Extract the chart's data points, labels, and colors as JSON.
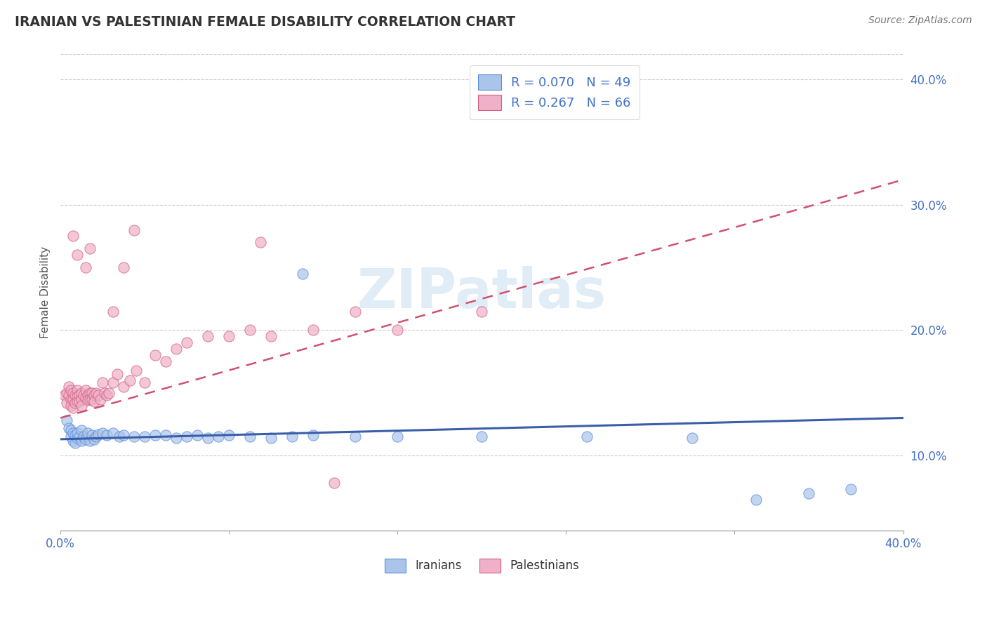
{
  "title": "IRANIAN VS PALESTINIAN FEMALE DISABILITY CORRELATION CHART",
  "source": "Source: ZipAtlas.com",
  "ylabel": "Female Disability",
  "xlim": [
    0.0,
    0.4
  ],
  "ylim": [
    0.04,
    0.42
  ],
  "yticks_right": [
    0.1,
    0.2,
    0.3,
    0.4
  ],
  "ytick_right_labels": [
    "10.0%",
    "20.0%",
    "30.0%",
    "40.0%"
  ],
  "iranian_color": "#aac4ea",
  "iranian_edge": "#5b8dd9",
  "palestinian_color": "#f0b0c8",
  "palestinian_edge": "#d06080",
  "trend_iranian_color": "#3a5fa8",
  "trend_palestinian_color": "#d05070",
  "watermark": "ZIPatlas",
  "background_color": "#ffffff",
  "iranians_x": [
    0.003,
    0.004,
    0.005,
    0.005,
    0.006,
    0.006,
    0.007,
    0.007,
    0.008,
    0.008,
    0.009,
    0.01,
    0.01,
    0.011,
    0.012,
    0.013,
    0.014,
    0.015,
    0.016,
    0.017,
    0.018,
    0.02,
    0.022,
    0.025,
    0.028,
    0.03,
    0.035,
    0.04,
    0.045,
    0.05,
    0.055,
    0.06,
    0.065,
    0.07,
    0.075,
    0.08,
    0.09,
    0.1,
    0.11,
    0.12,
    0.14,
    0.16,
    0.2,
    0.25,
    0.3,
    0.33,
    0.355,
    0.375,
    0.115
  ],
  "iranians_y": [
    0.128,
    0.122,
    0.12,
    0.115,
    0.118,
    0.112,
    0.116,
    0.11,
    0.114,
    0.118,
    0.115,
    0.12,
    0.112,
    0.115,
    0.113,
    0.118,
    0.112,
    0.116,
    0.113,
    0.115,
    0.117,
    0.118,
    0.116,
    0.118,
    0.115,
    0.116,
    0.115,
    0.115,
    0.116,
    0.116,
    0.114,
    0.115,
    0.116,
    0.114,
    0.115,
    0.116,
    0.115,
    0.114,
    0.115,
    0.116,
    0.115,
    0.115,
    0.115,
    0.115,
    0.114,
    0.065,
    0.07,
    0.073,
    0.245
  ],
  "palestinians_x": [
    0.002,
    0.003,
    0.003,
    0.004,
    0.004,
    0.005,
    0.005,
    0.005,
    0.006,
    0.006,
    0.006,
    0.007,
    0.007,
    0.008,
    0.008,
    0.008,
    0.009,
    0.009,
    0.01,
    0.01,
    0.01,
    0.011,
    0.012,
    0.012,
    0.013,
    0.013,
    0.014,
    0.014,
    0.015,
    0.015,
    0.016,
    0.016,
    0.017,
    0.018,
    0.019,
    0.02,
    0.021,
    0.022,
    0.023,
    0.025,
    0.027,
    0.03,
    0.033,
    0.036,
    0.04,
    0.045,
    0.05,
    0.055,
    0.06,
    0.07,
    0.08,
    0.09,
    0.1,
    0.12,
    0.14,
    0.16,
    0.2,
    0.025,
    0.03,
    0.035,
    0.095,
    0.13,
    0.012,
    0.014,
    0.006,
    0.008
  ],
  "palestinians_y": [
    0.148,
    0.15,
    0.142,
    0.155,
    0.148,
    0.152,
    0.145,
    0.14,
    0.15,
    0.145,
    0.138,
    0.148,
    0.142,
    0.152,
    0.147,
    0.143,
    0.148,
    0.143,
    0.15,
    0.145,
    0.14,
    0.148,
    0.152,
    0.146,
    0.148,
    0.144,
    0.15,
    0.145,
    0.15,
    0.145,
    0.148,
    0.143,
    0.15,
    0.148,
    0.145,
    0.158,
    0.15,
    0.148,
    0.15,
    0.158,
    0.165,
    0.155,
    0.16,
    0.168,
    0.158,
    0.18,
    0.175,
    0.185,
    0.19,
    0.195,
    0.195,
    0.2,
    0.195,
    0.2,
    0.215,
    0.2,
    0.215,
    0.215,
    0.25,
    0.28,
    0.27,
    0.078,
    0.25,
    0.265,
    0.275,
    0.26
  ]
}
